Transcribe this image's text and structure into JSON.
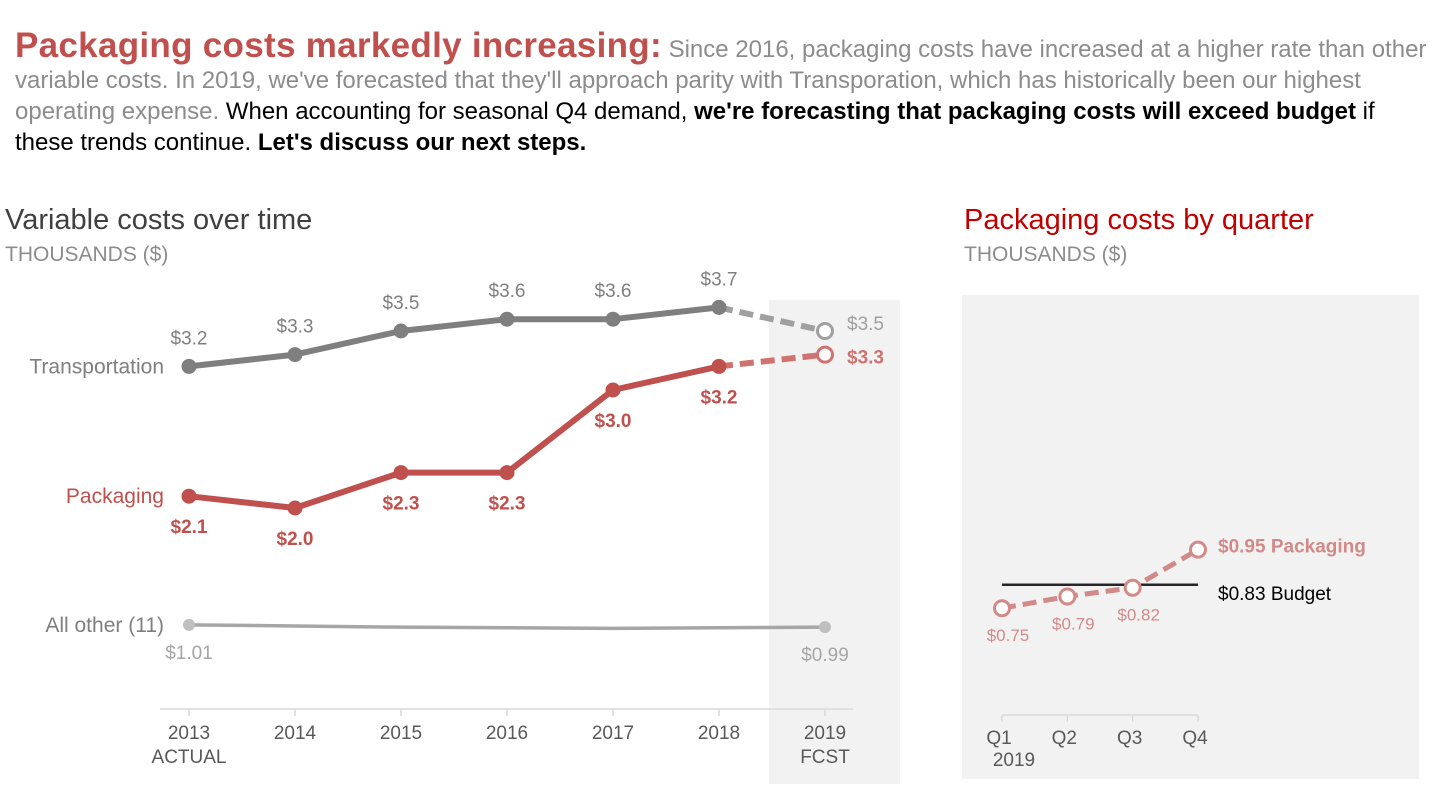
{
  "headline": {
    "lead": "Packaging costs markedly increasing:",
    "gray": " Since 2016, packaging costs have increased at a higher rate than other variable costs. In 2019, we've forecasted that they'll approach parity with Transporation, which has historically been our highest operating expense.",
    "dark1": " When accounting for seasonal Q4 demand, ",
    "bold1": "we're forecasting that packaging costs will exceed budget",
    "dark2": " if these trends continue. ",
    "bold2": "Let's discuss our next steps."
  },
  "colors": {
    "accent": "#c0504d",
    "accent_light": "#d28a88",
    "transport": "#7f7f7f",
    "other": "#a6a6a6",
    "right_title": "#c00000",
    "forecast_band": "#f2f2f2"
  },
  "chart_data": [
    {
      "type": "line",
      "title": "Variable costs over time",
      "subtitle": "THOUSANDS ($)",
      "categories": [
        "2013",
        "2014",
        "2015",
        "2016",
        "2017",
        "2018",
        "2019"
      ],
      "category_sublabels": {
        "0": "ACTUAL",
        "6": "FCST"
      },
      "forecast_from_index": 6,
      "ylim": [
        0.5,
        4.0
      ],
      "series": [
        {
          "name": "Transportation",
          "values": [
            3.2,
            3.3,
            3.5,
            3.6,
            3.6,
            3.7,
            3.5
          ],
          "labels": [
            "$3.2",
            "$3.3",
            "$3.5",
            "$3.6",
            "$3.6",
            "$3.7",
            "$3.5"
          ]
        },
        {
          "name": "Packaging",
          "values": [
            2.1,
            2.0,
            2.3,
            2.3,
            3.0,
            3.2,
            3.3
          ],
          "labels": [
            "$2.1",
            "$2.0",
            "$2.3",
            "$2.3",
            "$3.0",
            "$3.2",
            "$3.3"
          ]
        },
        {
          "name": "All other (11)",
          "values": [
            1.01,
            1.0,
            0.99,
            0.985,
            0.98,
            0.985,
            0.99
          ],
          "labels": [
            "$1.01",
            "",
            "",
            "",
            "",
            "",
            "$0.99"
          ]
        }
      ]
    },
    {
      "type": "line",
      "title": "Packaging costs by quarter",
      "subtitle": "THOUSANDS ($)",
      "categories": [
        "Q1",
        "Q2",
        "Q3",
        "Q4"
      ],
      "year_label": "2019",
      "ylim": [
        0.3,
        1.7
      ],
      "series": [
        {
          "name": "Packaging",
          "values": [
            0.75,
            0.79,
            0.82,
            0.95
          ],
          "labels": [
            "$0.75",
            "$0.79",
            "$0.82",
            "$0.95 Packaging"
          ]
        },
        {
          "name": "Budget",
          "values": [
            0.83,
            0.83,
            0.83,
            0.83
          ],
          "labels": [
            "",
            "",
            "",
            "$0.83 Budget"
          ]
        }
      ]
    }
  ]
}
